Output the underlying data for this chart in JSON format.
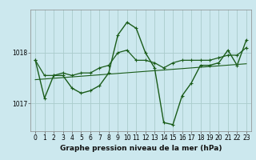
{
  "title": "Graphe pression niveau de la mer (hPa)",
  "bg_color": "#cce8ee",
  "grid_color": "#aacccc",
  "line_color": "#1a5c1a",
  "ylim": [
    1016.45,
    1018.85
  ],
  "yticks": [
    1017,
    1018
  ],
  "xlim": [
    -0.5,
    23.5
  ],
  "xticks": [
    0,
    1,
    2,
    3,
    4,
    5,
    6,
    7,
    8,
    9,
    10,
    11,
    12,
    13,
    14,
    15,
    16,
    17,
    18,
    19,
    20,
    21,
    22,
    23
  ],
  "series1": [
    1017.85,
    1017.1,
    1017.55,
    1017.55,
    1017.3,
    1017.2,
    1017.25,
    1017.35,
    1017.6,
    1018.35,
    1018.6,
    1018.48,
    1018.0,
    1017.7,
    1016.62,
    1016.58,
    1017.15,
    1017.4,
    1017.75,
    1017.75,
    1017.8,
    1018.05,
    1017.75,
    1018.25
  ],
  "series2": [
    1017.85,
    1017.55,
    1017.55,
    1017.6,
    1017.55,
    1017.6,
    1017.6,
    1017.7,
    1017.75,
    1018.0,
    1018.05,
    1017.85,
    1017.85,
    1017.8,
    1017.7,
    1017.8,
    1017.85,
    1017.85,
    1017.85,
    1017.85,
    1017.9,
    1017.95,
    1017.95,
    1018.1
  ],
  "tick_fontsize": 5.5,
  "label_fontsize": 6.5
}
